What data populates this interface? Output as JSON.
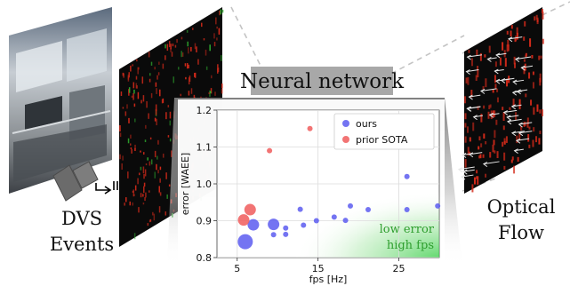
{
  "labels": {
    "input_line1": "DVS",
    "input_line2": "Events",
    "network": "Neural network",
    "output_line1": "Optical",
    "output_line2": "Flow"
  },
  "chart_data": {
    "type": "scatter",
    "xlabel": "fps [Hz]",
    "ylabel": "error [WAEE]",
    "xlim": [
      2.5,
      30
    ],
    "ylim": [
      0.8,
      1.2
    ],
    "xticks": [
      "5",
      "15",
      "25"
    ],
    "xtick_values": [
      5,
      15,
      25
    ],
    "yticks": [
      "0.8",
      "0.9",
      "1.0",
      "1.1",
      "1.2"
    ],
    "ytick_values": [
      0.8,
      0.9,
      1.0,
      1.1,
      1.2
    ],
    "grid": true,
    "legend_position": "top-right",
    "series": [
      {
        "name": "ours",
        "color": "#5c5cf0",
        "points": [
          {
            "x": 6.0,
            "y": 0.843,
            "size": "large"
          },
          {
            "x": 7.0,
            "y": 0.889,
            "size": "medium"
          },
          {
            "x": 9.5,
            "y": 0.89,
            "size": "medium"
          },
          {
            "x": 9.5,
            "y": 0.862,
            "size": "small"
          },
          {
            "x": 11.0,
            "y": 0.88,
            "size": "small"
          },
          {
            "x": 11.0,
            "y": 0.863,
            "size": "small"
          },
          {
            "x": 12.8,
            "y": 0.931,
            "size": "small"
          },
          {
            "x": 13.2,
            "y": 0.888,
            "size": "small"
          },
          {
            "x": 14.8,
            "y": 0.9,
            "size": "small"
          },
          {
            "x": 17.0,
            "y": 0.91,
            "size": "small"
          },
          {
            "x": 18.4,
            "y": 0.901,
            "size": "small"
          },
          {
            "x": 19.0,
            "y": 0.94,
            "size": "small"
          },
          {
            "x": 21.2,
            "y": 0.93,
            "size": "small"
          },
          {
            "x": 26.0,
            "y": 1.02,
            "size": "small"
          },
          {
            "x": 26.0,
            "y": 0.93,
            "size": "small"
          },
          {
            "x": 29.8,
            "y": 0.94,
            "size": "small"
          }
        ]
      },
      {
        "name": "prior SOTA",
        "color": "#f05c5c",
        "points": [
          {
            "x": 5.8,
            "y": 0.902,
            "size": "medium"
          },
          {
            "x": 6.6,
            "y": 0.93,
            "size": "medium"
          },
          {
            "x": 9.0,
            "y": 1.09,
            "size": "small"
          },
          {
            "x": 14.0,
            "y": 1.15,
            "size": "small"
          }
        ]
      }
    ],
    "annotation": {
      "line1": "low error",
      "line2": "high fps",
      "color": "#2e9e2e"
    }
  },
  "colors": {
    "event_red": "#d42a1a",
    "event_green": "#2ea82e",
    "frame_dark": "#0a0a0a",
    "dashed_line": "#bdbdbd",
    "network_label_bg": "#a8a8a8"
  },
  "icons": {
    "camera": "dvs-camera-icon"
  }
}
